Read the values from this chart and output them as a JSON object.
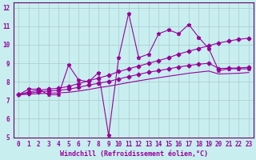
{
  "xlabel": "Windchill (Refroidissement éolien,°C)",
  "background_color": "#c8eef0",
  "grid_color": "#aacccc",
  "line_color": "#990099",
  "spine_color": "#660066",
  "xlim": [
    -0.5,
    23.5
  ],
  "ylim": [
    5,
    12.3
  ],
  "xticks": [
    0,
    1,
    2,
    3,
    4,
    5,
    6,
    7,
    8,
    9,
    10,
    11,
    12,
    13,
    14,
    15,
    16,
    17,
    18,
    19,
    20,
    21,
    22,
    23
  ],
  "yticks": [
    5,
    6,
    7,
    8,
    9,
    10,
    11,
    12
  ],
  "series1_x": [
    0,
    1,
    2,
    3,
    4,
    5,
    6,
    7,
    8,
    9,
    10,
    11,
    12,
    13,
    14,
    15,
    16,
    17,
    18,
    19,
    20,
    21,
    22,
    23
  ],
  "series1_y": [
    7.3,
    7.6,
    7.6,
    7.3,
    7.3,
    8.9,
    8.1,
    8.0,
    8.5,
    5.1,
    9.3,
    11.7,
    9.3,
    9.5,
    10.6,
    10.8,
    10.6,
    11.1,
    10.4,
    9.8,
    8.6,
    8.7,
    8.7,
    8.7
  ],
  "series2_x": [
    0,
    1,
    2,
    3,
    4,
    5,
    6,
    7,
    8,
    9,
    10,
    11,
    12,
    13,
    14,
    15,
    16,
    17,
    18,
    19,
    20,
    21,
    22,
    23
  ],
  "series2_y": [
    7.3,
    7.45,
    7.55,
    7.6,
    7.65,
    7.75,
    7.9,
    8.05,
    8.2,
    8.35,
    8.55,
    8.7,
    8.85,
    9.0,
    9.15,
    9.3,
    9.5,
    9.65,
    9.8,
    9.95,
    10.1,
    10.2,
    10.3,
    10.35
  ],
  "series3_x": [
    0,
    1,
    2,
    3,
    4,
    5,
    6,
    7,
    8,
    9,
    10,
    11,
    12,
    13,
    14,
    15,
    16,
    17,
    18,
    19,
    20,
    21,
    22,
    23
  ],
  "series3_y": [
    7.3,
    7.38,
    7.46,
    7.5,
    7.54,
    7.6,
    7.7,
    7.82,
    7.92,
    8.02,
    8.15,
    8.28,
    8.4,
    8.52,
    8.6,
    8.7,
    8.8,
    8.88,
    8.95,
    9.0,
    8.72,
    8.73,
    8.75,
    8.78
  ],
  "series4_x": [
    0,
    1,
    2,
    3,
    4,
    5,
    6,
    7,
    8,
    9,
    10,
    11,
    12,
    13,
    14,
    15,
    16,
    17,
    18,
    19,
    20,
    21,
    22,
    23
  ],
  "series4_y": [
    7.3,
    7.33,
    7.36,
    7.38,
    7.4,
    7.43,
    7.5,
    7.58,
    7.68,
    7.76,
    7.86,
    7.96,
    8.05,
    8.14,
    8.22,
    8.3,
    8.38,
    8.46,
    8.52,
    8.58,
    8.42,
    8.44,
    8.46,
    8.5
  ],
  "tick_fontsize": 5.5,
  "xlabel_fontsize": 6.0,
  "line_width": 0.8,
  "marker_size_star": 3.5,
  "marker_size_diamond": 2.5
}
